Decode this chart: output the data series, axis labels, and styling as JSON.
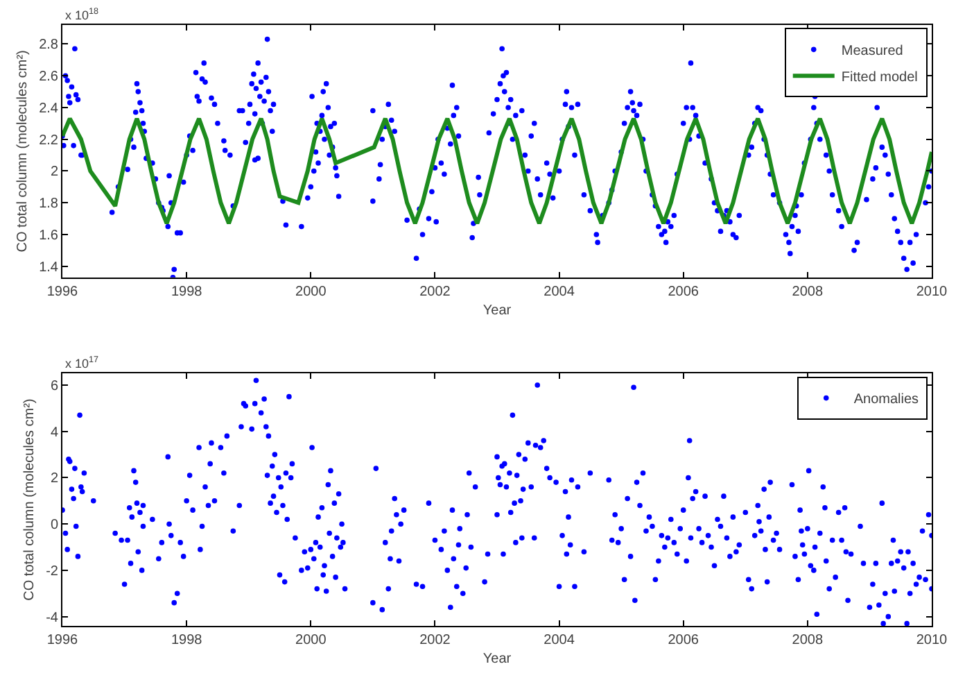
{
  "chart_data": [
    {
      "type": "scatter",
      "xlabel": "Year",
      "ylabel": "CO total column (molecules cm²)",
      "annotations": [
        "x 10$^{18}$"
      ],
      "xlim": [
        1996,
        2010
      ],
      "xticks": [
        1996,
        1998,
        2000,
        2002,
        2004,
        2006,
        2008,
        2010
      ],
      "ylim": [
        1.33,
        2.92
      ],
      "yticks": [
        1.4,
        1.6,
        1.8,
        2,
        2.2,
        2.4,
        2.6,
        2.8
      ],
      "grid": false,
      "legend": "top right",
      "series": [
        {
          "name": "Measured",
          "marker": "circle",
          "color": "#0000ff",
          "x": [
            1996.0,
            1996.02,
            1996.05,
            1996.08,
            1996.1,
            1996.12,
            1996.15,
            1996.2,
            1996.22,
            1996.25,
            1996.18,
            1996.3,
            1996.32,
            1996.8,
            1996.9,
            1997.05,
            1997.1,
            1997.15,
            1997.18,
            1997.2,
            1997.22,
            1997.25,
            1997.28,
            1997.3,
            1997.32,
            1997.35,
            1997.45,
            1997.5,
            1997.55,
            1997.6,
            1997.62,
            1997.7,
            1997.72,
            1997.75,
            1997.78,
            1997.8,
            1997.85,
            1997.9,
            1997.95,
            1998.0,
            1998.05,
            1998.1,
            1998.15,
            1998.17,
            1998.2,
            1998.25,
            1998.28,
            1998.3,
            1998.4,
            1998.45,
            1998.5,
            1998.6,
            1998.62,
            1998.7,
            1998.75,
            1998.85,
            1998.9,
            1998.95,
            1999.0,
            1999.02,
            1999.05,
            1999.08,
            1999.1,
            1999.12,
            1999.15,
            1999.18,
            1999.2,
            1999.22,
            1999.25,
            1999.28,
            1999.3,
            1999.32,
            1999.35,
            1999.38,
            1999.4,
            1999.1,
            1999.15,
            1999.55,
            1999.6,
            1999.85,
            1999.95,
            2000.0,
            2000.02,
            2000.05,
            2000.08,
            2000.1,
            2000.12,
            2000.15,
            2000.18,
            2000.2,
            2000.22,
            2000.25,
            2000.28,
            2000.3,
            2000.32,
            2000.35,
            2000.4,
            2000.42,
            2000.45,
            2000.38,
            2001.0,
            2001.0,
            2001.1,
            2001.12,
            2001.15,
            2001.2,
            2001.25,
            2001.3,
            2001.35,
            2001.55,
            2001.7,
            2001.75,
            2001.8,
            2001.9,
            2001.95,
            2002.0,
            2002.02,
            2002.05,
            2002.1,
            2002.15,
            2002.2,
            2002.25,
            2002.28,
            2002.3,
            2002.35,
            2002.38,
            2002.6,
            2002.62,
            2002.7,
            2002.72,
            2002.87,
            2002.94,
            2003.0,
            2003.05,
            2003.08,
            2003.1,
            2003.12,
            2003.15,
            2003.18,
            2003.2,
            2003.22,
            2003.25,
            2003.3,
            2003.4,
            2003.45,
            2003.5,
            2003.55,
            2003.6,
            2003.65,
            2003.7,
            2003.8,
            2003.85,
            2003.9,
            2004.0,
            2004.05,
            2004.1,
            2004.12,
            2004.15,
            2004.2,
            2004.25,
            2004.3,
            2004.4,
            2004.5,
            2004.6,
            2004.62,
            2004.7,
            2004.8,
            2004.85,
            2004.9,
            2005.0,
            2005.05,
            2005.1,
            2005.15,
            2005.18,
            2005.2,
            2005.25,
            2005.3,
            2005.35,
            2005.4,
            2005.5,
            2005.55,
            2005.6,
            2005.65,
            2005.7,
            2005.72,
            2005.75,
            2005.8,
            2005.85,
            2005.9,
            2006.0,
            2006.05,
            2006.1,
            2006.12,
            2006.15,
            2006.2,
            2006.25,
            2006.35,
            2006.45,
            2006.5,
            2006.55,
            2006.6,
            2006.65,
            2006.7,
            2006.75,
            2006.8,
            2006.85,
            2006.9,
            2007.05,
            2007.1,
            2007.15,
            2007.2,
            2007.25,
            2007.3,
            2007.35,
            2007.4,
            2007.45,
            2007.55,
            2007.65,
            2007.7,
            2007.72,
            2007.75,
            2007.8,
            2007.82,
            2007.85,
            2007.9,
            2007.95,
            2008.05,
            2008.1,
            2008.12,
            2008.15,
            2008.2,
            2008.3,
            2008.35,
            2008.4,
            2008.5,
            2008.55,
            2008.75,
            2008.8,
            2008.95,
            2009.05,
            2009.1,
            2009.12,
            2009.2,
            2009.25,
            2009.3,
            2009.35,
            2009.4,
            2009.45,
            2009.5,
            2009.55,
            2009.6,
            2009.65,
            2009.7,
            2009.75,
            2009.9,
            2009.95,
            2010.0
          ],
          "values": [
            2.22,
            2.16,
            2.6,
            2.57,
            2.47,
            2.43,
            2.53,
            2.77,
            2.48,
            2.45,
            2.16,
            2.1,
            2.1,
            1.74,
            1.9,
            2.01,
            2.2,
            2.15,
            2.37,
            2.55,
            2.5,
            2.43,
            2.38,
            2.3,
            2.25,
            2.08,
            2.05,
            1.95,
            1.8,
            1.77,
            1.75,
            1.65,
            1.97,
            1.8,
            1.33,
            1.38,
            1.61,
            1.61,
            1.93,
            2.1,
            2.22,
            2.13,
            2.62,
            2.47,
            2.44,
            2.58,
            2.68,
            2.56,
            2.46,
            2.42,
            2.3,
            2.19,
            2.13,
            2.1,
            1.78,
            2.38,
            2.38,
            2.18,
            2.3,
            2.42,
            2.55,
            2.61,
            2.36,
            2.52,
            2.68,
            2.47,
            2.56,
            2.3,
            2.44,
            2.59,
            2.83,
            2.5,
            2.38,
            2.25,
            2.42,
            2.07,
            2.08,
            1.81,
            1.66,
            1.65,
            1.83,
            1.9,
            2.47,
            2.0,
            2.12,
            2.3,
            2.05,
            2.25,
            2.35,
            2.5,
            2.2,
            2.55,
            2.4,
            2.1,
            2.28,
            2.15,
            2.02,
            1.97,
            1.84,
            2.3,
            2.38,
            1.81,
            1.95,
            2.04,
            2.2,
            2.28,
            2.42,
            2.32,
            2.25,
            1.69,
            1.45,
            1.76,
            1.6,
            1.7,
            1.87,
            2.02,
            1.68,
            2.2,
            2.05,
            1.98,
            2.27,
            2.17,
            2.54,
            2.35,
            2.4,
            2.22,
            1.58,
            1.67,
            1.96,
            1.85,
            2.24,
            2.36,
            2.45,
            2.55,
            2.77,
            2.6,
            2.5,
            2.62,
            2.4,
            2.3,
            2.45,
            2.2,
            2.35,
            2.38,
            2.1,
            2.0,
            2.22,
            2.3,
            1.95,
            1.85,
            2.05,
            1.98,
            1.83,
            2.0,
            2.2,
            2.42,
            2.5,
            2.28,
            2.4,
            2.1,
            2.42,
            1.85,
            1.75,
            1.6,
            1.55,
            1.72,
            1.8,
            1.88,
            2.0,
            2.12,
            2.3,
            2.4,
            2.5,
            2.43,
            2.38,
            2.35,
            2.42,
            2.2,
            2.0,
            1.85,
            1.78,
            1.65,
            1.6,
            1.62,
            1.55,
            1.68,
            1.65,
            1.72,
            1.98,
            2.3,
            2.4,
            2.2,
            2.68,
            2.4,
            2.35,
            2.22,
            2.05,
            1.95,
            1.8,
            1.75,
            1.62,
            1.72,
            1.75,
            1.68,
            1.6,
            1.58,
            1.72,
            2.1,
            2.15,
            2.3,
            2.4,
            2.38,
            2.2,
            2.1,
            1.98,
            1.85,
            1.8,
            1.6,
            1.55,
            1.48,
            1.65,
            1.72,
            1.78,
            1.62,
            1.85,
            2.05,
            2.2,
            2.4,
            2.47,
            2.3,
            2.2,
            2.1,
            2.0,
            1.85,
            1.75,
            1.65,
            1.5,
            1.55,
            1.82,
            1.95,
            2.02,
            2.4,
            2.15,
            2.1,
            1.98,
            1.85,
            1.7,
            1.62,
            1.55,
            1.45,
            1.38,
            1.55,
            1.42,
            1.6,
            1.8,
            1.9,
            2.0
          ]
        },
        {
          "name": "Fitted model",
          "type": "line",
          "marker": "none",
          "line_style": "solid",
          "color": "#1e8c1e",
          "x": [
            1996.0,
            1996.12,
            1996.3,
            1996.45,
            1996.85,
            1996.97,
            1997.08,
            1997.2,
            1997.32,
            1997.43,
            1997.55,
            1997.68,
            1997.8,
            1997.93,
            1998.06,
            1998.2,
            1998.32,
            1998.43,
            1998.55,
            1998.68,
            1998.8,
            1998.93,
            1999.06,
            1999.2,
            1999.3,
            1999.4,
            1999.5,
            1999.8,
            1999.95,
            2000.06,
            2000.18,
            2000.3,
            2000.4,
            2001.02,
            2001.2,
            2001.32,
            2001.43,
            2001.55,
            2001.68,
            2001.8,
            2001.93,
            2002.06,
            2002.2,
            2002.32,
            2002.43,
            2002.55,
            2002.68,
            2002.8,
            2002.93,
            2003.06,
            2003.2,
            2003.32,
            2003.43,
            2003.55,
            2003.68,
            2003.8,
            2003.93,
            2004.06,
            2004.2,
            2004.32,
            2004.43,
            2004.55,
            2004.68,
            2004.8,
            2004.93,
            2005.06,
            2005.2,
            2005.32,
            2005.43,
            2005.55,
            2005.68,
            2005.8,
            2005.93,
            2006.06,
            2006.2,
            2006.32,
            2006.43,
            2006.55,
            2006.68,
            2006.8,
            2006.93,
            2007.06,
            2007.2,
            2007.32,
            2007.43,
            2007.55,
            2007.68,
            2007.8,
            2007.93,
            2008.06,
            2008.2,
            2008.32,
            2008.43,
            2008.55,
            2008.68,
            2008.8,
            2008.93,
            2009.06,
            2009.2,
            2009.32,
            2009.43,
            2009.55,
            2009.68,
            2009.8,
            2009.93,
            2010.0
          ],
          "values": [
            2.22,
            2.33,
            2.2,
            2.0,
            1.78,
            2.0,
            2.2,
            2.33,
            2.2,
            2.0,
            1.8,
            1.67,
            1.8,
            2.0,
            2.2,
            2.33,
            2.2,
            2.0,
            1.8,
            1.67,
            1.8,
            2.0,
            2.2,
            2.33,
            2.2,
            2.0,
            1.84,
            1.8,
            2.0,
            2.2,
            2.33,
            2.2,
            2.05,
            2.15,
            2.33,
            2.2,
            2.0,
            1.8,
            1.67,
            1.8,
            2.0,
            2.2,
            2.33,
            2.2,
            2.0,
            1.8,
            1.67,
            1.8,
            2.0,
            2.2,
            2.33,
            2.2,
            2.0,
            1.8,
            1.67,
            1.8,
            2.0,
            2.2,
            2.33,
            2.2,
            2.0,
            1.8,
            1.67,
            1.8,
            2.0,
            2.2,
            2.33,
            2.2,
            2.0,
            1.8,
            1.67,
            1.8,
            2.0,
            2.2,
            2.33,
            2.2,
            2.0,
            1.8,
            1.67,
            1.8,
            2.0,
            2.2,
            2.33,
            2.2,
            2.0,
            1.8,
            1.67,
            1.8,
            2.0,
            2.2,
            2.33,
            2.2,
            2.0,
            1.8,
            1.67,
            1.8,
            2.0,
            2.2,
            2.33,
            2.2,
            2.0,
            1.8,
            1.67,
            1.8,
            2.0,
            2.12
          ]
        }
      ]
    },
    {
      "type": "scatter",
      "xlabel": "Year",
      "ylabel": "CO total column (molecules cm²)",
      "annotations": [
        "x 10$^{17}$"
      ],
      "xlim": [
        1996,
        2010
      ],
      "xticks": [
        1996,
        1998,
        2000,
        2002,
        2004,
        2006,
        2008,
        2010
      ],
      "ylim": [
        -4.4,
        6.5
      ],
      "yticks": [
        -4,
        -2,
        0,
        2,
        4,
        6
      ],
      "grid": false,
      "legend": "top right",
      "series": [
        {
          "name": "Anomalies",
          "marker": "circle",
          "color": "#0000ff",
          "x": [
            1996.0,
            1996.05,
            1996.08,
            1996.1,
            1996.12,
            1996.15,
            1996.18,
            1996.2,
            1996.22,
            1996.25,
            1996.28,
            1996.3,
            1996.32,
            1996.35,
            1996.5,
            1996.85,
            1996.95,
            1997.0,
            1997.05,
            1997.08,
            1997.1,
            1997.12,
            1997.15,
            1997.18,
            1997.2,
            1997.22,
            1997.25,
            1997.28,
            1997.3,
            1997.3,
            1997.45,
            1997.55,
            1997.6,
            1997.7,
            1997.72,
            1997.75,
            1997.8,
            1997.85,
            1997.9,
            1997.95,
            1998.0,
            1998.05,
            1998.1,
            1998.2,
            1998.22,
            1998.25,
            1998.3,
            1998.35,
            1998.38,
            1998.4,
            1998.45,
            1998.55,
            1998.6,
            1998.65,
            1998.75,
            1998.85,
            1998.88,
            1998.92,
            1998.95,
            1999.05,
            1999.1,
            1999.12,
            1999.2,
            1999.25,
            1999.28,
            1999.3,
            1999.32,
            1999.35,
            1999.38,
            1999.4,
            1999.42,
            1999.45,
            1999.48,
            1999.5,
            1999.52,
            1999.55,
            1999.58,
            1999.6,
            1999.62,
            1999.65,
            1999.68,
            1999.7,
            1999.75,
            1999.85,
            1999.9,
            1999.95,
            2000.0,
            2000.02,
            2000.05,
            2000.08,
            2000.1,
            2000.12,
            2000.15,
            2000.18,
            2000.2,
            2000.22,
            2000.25,
            2000.28,
            2000.3,
            2000.32,
            2000.35,
            2000.38,
            2000.4,
            2000.42,
            2000.45,
            2000.48,
            2000.5,
            2000.52,
            2000.55,
            2001.0,
            2001.05,
            2001.15,
            2001.2,
            2001.25,
            2001.28,
            2001.3,
            2001.35,
            2001.38,
            2001.42,
            2001.45,
            2001.5,
            2001.7,
            2001.8,
            2001.9,
            2002.0,
            2002.1,
            2002.15,
            2002.2,
            2002.25,
            2002.28,
            2002.3,
            2002.35,
            2002.38,
            2002.4,
            2002.45,
            2002.5,
            2002.52,
            2002.55,
            2002.58,
            2002.65,
            2002.8,
            2002.85,
            2003.0,
            2003.0,
            2003.02,
            2003.05,
            2003.08,
            2003.1,
            2003.12,
            2003.15,
            2003.2,
            2003.22,
            2003.25,
            2003.28,
            2003.3,
            2003.32,
            2003.35,
            2003.38,
            2003.4,
            2003.42,
            2003.45,
            2003.5,
            2003.55,
            2003.6,
            2003.62,
            2003.65,
            2003.7,
            2003.75,
            2003.8,
            2003.85,
            2003.95,
            2004.0,
            2004.05,
            2004.1,
            2004.12,
            2004.15,
            2004.18,
            2004.2,
            2004.25,
            2004.3,
            2004.4,
            2004.5,
            2004.8,
            2004.85,
            2004.9,
            2004.95,
            2005.0,
            2005.05,
            2005.1,
            2005.15,
            2005.2,
            2005.22,
            2005.25,
            2005.3,
            2005.35,
            2005.4,
            2005.45,
            2005.5,
            2005.55,
            2005.6,
            2005.65,
            2005.7,
            2005.75,
            2005.8,
            2005.85,
            2005.9,
            2005.95,
            2006.0,
            2006.05,
            2006.08,
            2006.1,
            2006.12,
            2006.15,
            2006.2,
            2006.25,
            2006.3,
            2006.35,
            2006.4,
            2006.45,
            2006.5,
            2006.55,
            2006.6,
            2006.65,
            2006.7,
            2006.75,
            2006.8,
            2006.85,
            2006.9,
            2007.0,
            2007.05,
            2007.1,
            2007.15,
            2007.2,
            2007.22,
            2007.25,
            2007.3,
            2007.32,
            2007.35,
            2007.38,
            2007.4,
            2007.45,
            2007.5,
            2007.55,
            2007.75,
            2007.8,
            2007.85,
            2007.88,
            2007.9,
            2007.92,
            2007.95,
            2008.0,
            2008.02,
            2008.05,
            2008.1,
            2008.12,
            2008.15,
            2008.2,
            2008.25,
            2008.28,
            2008.3,
            2008.35,
            2008.4,
            2008.45,
            2008.5,
            2008.55,
            2008.6,
            2008.62,
            2008.65,
            2008.7,
            2008.85,
            2008.9,
            2009.0,
            2009.05,
            2009.1,
            2009.15,
            2009.2,
            2009.22,
            2009.25,
            2009.3,
            2009.35,
            2009.38,
            2009.4,
            2009.45,
            2009.5,
            2009.55,
            2009.6,
            2009.62,
            2009.65,
            2009.7,
            2009.75,
            2009.8,
            2009.85,
            2009.9,
            2009.95,
            2010.0,
            2010.0
          ],
          "values": [
            0.6,
            -0.4,
            -1.1,
            2.8,
            2.7,
            1.5,
            1.1,
            2.4,
            -0.1,
            -1.4,
            4.7,
            1.6,
            1.4,
            2.2,
            1.0,
            -0.4,
            -0.7,
            -2.6,
            -0.7,
            0.7,
            -1.7,
            0.3,
            2.3,
            1.8,
            0.9,
            -1.2,
            0.5,
            -2.0,
            0.8,
            -0.1,
            0.2,
            -1.5,
            -0.8,
            2.9,
            0.0,
            -0.5,
            -3.4,
            -3.0,
            -0.8,
            -1.4,
            1.0,
            2.1,
            0.6,
            3.3,
            -1.1,
            -0.1,
            1.6,
            0.8,
            2.6,
            3.5,
            1.0,
            3.3,
            2.2,
            3.8,
            -0.3,
            0.8,
            4.2,
            5.2,
            5.1,
            4.1,
            5.2,
            6.2,
            4.8,
            5.4,
            4.2,
            2.1,
            3.8,
            0.9,
            2.5,
            1.2,
            3.0,
            0.5,
            2.0,
            -2.2,
            1.6,
            0.8,
            -2.5,
            2.2,
            0.2,
            5.5,
            2.0,
            2.6,
            -0.6,
            -2.0,
            -1.2,
            -1.9,
            -1.1,
            3.3,
            -1.5,
            -0.8,
            -2.8,
            0.3,
            -1.0,
            0.7,
            -2.2,
            -1.8,
            -2.9,
            1.7,
            -0.4,
            2.3,
            -1.4,
            0.9,
            -2.3,
            -0.6,
            1.3,
            -1.0,
            0.0,
            -0.8,
            -2.8,
            -3.4,
            2.4,
            -3.7,
            -0.8,
            -2.8,
            -1.5,
            -0.3,
            1.1,
            0.4,
            -1.6,
            0.0,
            0.6,
            -2.6,
            -2.7,
            0.9,
            -0.7,
            -1.1,
            -0.3,
            -2.0,
            -3.6,
            0.6,
            -1.5,
            -2.7,
            -0.9,
            -0.2,
            -3.0,
            -1.9,
            0.4,
            2.2,
            -1.0,
            1.6,
            -2.5,
            -1.3,
            2.9,
            0.4,
            2.0,
            1.7,
            2.5,
            -1.3,
            2.6,
            1.6,
            2.2,
            0.5,
            4.7,
            0.9,
            -0.8,
            2.1,
            3.0,
            1.0,
            -0.6,
            1.5,
            2.8,
            3.5,
            1.6,
            -0.6,
            3.4,
            6.0,
            3.3,
            3.6,
            2.4,
            2.0,
            1.8,
            -2.7,
            -0.5,
            1.4,
            -1.3,
            0.3,
            -0.9,
            1.9,
            -2.7,
            1.6,
            -1.2,
            2.2,
            1.9,
            -0.7,
            0.4,
            -0.8,
            -0.2,
            -2.4,
            1.1,
            -1.4,
            5.9,
            -3.3,
            1.8,
            0.8,
            2.2,
            -0.3,
            0.3,
            -0.1,
            -2.4,
            -1.6,
            -0.5,
            -1.0,
            -0.6,
            0.2,
            -0.8,
            -1.3,
            -0.2,
            0.6,
            -1.6,
            2.0,
            3.6,
            -0.6,
            1.1,
            1.4,
            -0.2,
            -0.8,
            1.2,
            -0.5,
            -1.0,
            -1.8,
            0.2,
            -0.1,
            1.2,
            -0.6,
            -1.4,
            0.3,
            -1.2,
            -0.9,
            0.5,
            -2.4,
            -2.8,
            -0.5,
            0.8,
            0.1,
            -0.3,
            1.5,
            -1.1,
            -2.5,
            0.3,
            1.8,
            -0.7,
            -0.4,
            -1.1,
            1.7,
            -1.4,
            -2.4,
            0.6,
            -0.3,
            -0.9,
            -1.3,
            -0.2,
            2.3,
            -1.8,
            -2.0,
            -1.0,
            -3.9,
            -0.4,
            1.6,
            0.7,
            -1.6,
            -2.8,
            -0.7,
            -2.3,
            0.5,
            -0.7,
            0.7,
            -1.2,
            -3.3,
            -1.3,
            -0.1,
            -1.7,
            -3.6,
            -2.6,
            -1.7,
            -3.5,
            0.9,
            -4.3,
            -3.0,
            -4.0,
            -1.7,
            -0.7,
            -2.9,
            -1.6,
            -1.2,
            -1.9,
            -4.3,
            -1.2,
            -3.0,
            -1.7,
            -2.6,
            -2.3,
            -0.3,
            -2.4,
            0.4,
            -0.5,
            -2.8
          ]
        }
      ]
    }
  ]
}
